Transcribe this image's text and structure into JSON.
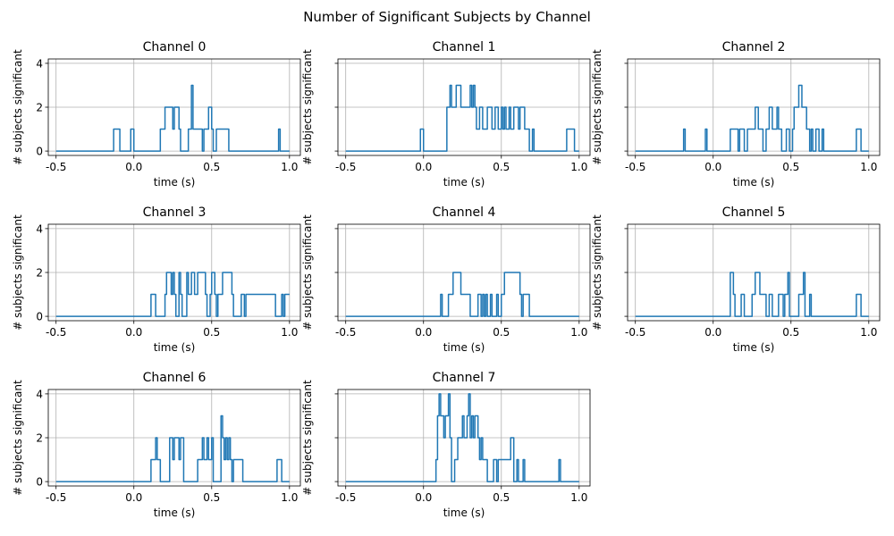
{
  "figure": {
    "suptitle": "Number of Significant Subjects by Channel"
  },
  "colors": {
    "series": "#1f77b4",
    "grid": "#b0b0b0"
  },
  "chart_data": {
    "type": "line",
    "shared_y": true,
    "grid": true,
    "xlim": [
      -0.55,
      1.07
    ],
    "ylim": [
      -0.2,
      4.2
    ],
    "xticks": [
      -0.5,
      0.0,
      0.5,
      1.0
    ],
    "xtick_labels": [
      "-0.5",
      "0.0",
      "0.5",
      "1.0"
    ],
    "yticks": [
      0,
      2,
      4
    ],
    "ytick_labels": [
      "0",
      "2",
      "4"
    ],
    "xlabel": "time (s)",
    "ylabel": "# subjects significant",
    "panels": [
      {
        "title": "Channel 0",
        "x": [
          -0.5,
          -0.13,
          -0.13,
          -0.09,
          -0.09,
          -0.02,
          -0.02,
          0.0,
          0.0,
          0.17,
          0.17,
          0.2,
          0.2,
          0.25,
          0.25,
          0.26,
          0.26,
          0.29,
          0.29,
          0.3,
          0.3,
          0.35,
          0.35,
          0.37,
          0.37,
          0.38,
          0.38,
          0.44,
          0.44,
          0.45,
          0.45,
          0.48,
          0.48,
          0.5,
          0.5,
          0.51,
          0.51,
          0.53,
          0.53,
          0.61,
          0.61,
          0.93,
          0.93,
          0.94,
          0.94,
          1.0
        ],
        "y": [
          0,
          0,
          1,
          1,
          0,
          0,
          1,
          1,
          0,
          0,
          1,
          1,
          2,
          2,
          1,
          1,
          2,
          2,
          1,
          1,
          0,
          0,
          1,
          1,
          3,
          3,
          1,
          1,
          0,
          0,
          1,
          1,
          2,
          2,
          1,
          1,
          0,
          0,
          1,
          1,
          0,
          0,
          1,
          1,
          0,
          0
        ]
      },
      {
        "title": "Channel 1",
        "x": [
          -0.5,
          -0.02,
          -0.02,
          0.0,
          0.0,
          0.15,
          0.15,
          0.17,
          0.17,
          0.18,
          0.18,
          0.21,
          0.21,
          0.24,
          0.24,
          0.3,
          0.3,
          0.31,
          0.31,
          0.32,
          0.32,
          0.33,
          0.33,
          0.34,
          0.34,
          0.36,
          0.36,
          0.38,
          0.38,
          0.41,
          0.41,
          0.44,
          0.44,
          0.46,
          0.46,
          0.48,
          0.48,
          0.5,
          0.5,
          0.51,
          0.51,
          0.52,
          0.52,
          0.53,
          0.53,
          0.55,
          0.55,
          0.56,
          0.56,
          0.58,
          0.58,
          0.61,
          0.61,
          0.62,
          0.62,
          0.65,
          0.65,
          0.68,
          0.68,
          0.7,
          0.7,
          0.71,
          0.71,
          0.92,
          0.92,
          0.97,
          0.97,
          1.0
        ],
        "y": [
          0,
          0,
          1,
          1,
          0,
          0,
          2,
          2,
          3,
          3,
          2,
          2,
          3,
          3,
          2,
          2,
          3,
          3,
          2,
          2,
          3,
          3,
          2,
          2,
          1,
          1,
          2,
          2,
          1,
          1,
          2,
          2,
          1,
          1,
          2,
          2,
          1,
          1,
          2,
          2,
          1,
          1,
          2,
          2,
          1,
          1,
          2,
          2,
          1,
          1,
          2,
          2,
          1,
          1,
          2,
          2,
          1,
          1,
          0,
          0,
          1,
          1,
          0,
          0,
          1,
          1,
          0,
          0
        ]
      },
      {
        "title": "Channel 2",
        "x": [
          -0.5,
          -0.19,
          -0.19,
          -0.18,
          -0.18,
          -0.05,
          -0.05,
          -0.04,
          -0.04,
          0.11,
          0.11,
          0.16,
          0.16,
          0.17,
          0.17,
          0.2,
          0.2,
          0.22,
          0.22,
          0.27,
          0.27,
          0.29,
          0.29,
          0.32,
          0.32,
          0.34,
          0.34,
          0.36,
          0.36,
          0.38,
          0.38,
          0.41,
          0.41,
          0.42,
          0.42,
          0.44,
          0.44,
          0.47,
          0.47,
          0.49,
          0.49,
          0.51,
          0.51,
          0.52,
          0.52,
          0.55,
          0.55,
          0.57,
          0.57,
          0.6,
          0.6,
          0.62,
          0.62,
          0.63,
          0.63,
          0.64,
          0.64,
          0.66,
          0.66,
          0.68,
          0.68,
          0.7,
          0.7,
          0.71,
          0.71,
          0.92,
          0.92,
          0.95,
          0.95,
          1.0
        ],
        "y": [
          0,
          0,
          1,
          1,
          0,
          0,
          1,
          1,
          0,
          0,
          1,
          1,
          0,
          0,
          1,
          1,
          0,
          0,
          1,
          1,
          2,
          2,
          1,
          1,
          0,
          0,
          1,
          1,
          2,
          2,
          1,
          1,
          2,
          2,
          1,
          1,
          0,
          0,
          1,
          1,
          0,
          0,
          1,
          1,
          2,
          2,
          3,
          3,
          2,
          2,
          1,
          1,
          0,
          0,
          1,
          1,
          0,
          0,
          1,
          1,
          0,
          0,
          1,
          1,
          0,
          0,
          1,
          1,
          0,
          0
        ]
      },
      {
        "title": "Channel 3",
        "x": [
          -0.5,
          0.11,
          0.11,
          0.14,
          0.14,
          0.2,
          0.2,
          0.21,
          0.21,
          0.24,
          0.24,
          0.25,
          0.25,
          0.26,
          0.26,
          0.27,
          0.27,
          0.29,
          0.29,
          0.3,
          0.3,
          0.31,
          0.31,
          0.34,
          0.34,
          0.35,
          0.35,
          0.37,
          0.37,
          0.39,
          0.39,
          0.41,
          0.41,
          0.46,
          0.46,
          0.47,
          0.47,
          0.49,
          0.49,
          0.5,
          0.5,
          0.52,
          0.52,
          0.53,
          0.53,
          0.54,
          0.54,
          0.57,
          0.57,
          0.63,
          0.63,
          0.64,
          0.64,
          0.69,
          0.69,
          0.71,
          0.71,
          0.72,
          0.72,
          0.91,
          0.91,
          0.95,
          0.95,
          0.96,
          0.96,
          0.97,
          0.97,
          1.0
        ],
        "y": [
          0,
          0,
          1,
          1,
          0,
          0,
          1,
          1,
          2,
          2,
          1,
          1,
          2,
          2,
          1,
          1,
          0,
          0,
          2,
          2,
          1,
          1,
          0,
          0,
          2,
          2,
          1,
          1,
          2,
          2,
          1,
          1,
          2,
          2,
          1,
          1,
          0,
          0,
          1,
          1,
          2,
          2,
          1,
          1,
          0,
          0,
          1,
          1,
          2,
          2,
          1,
          1,
          0,
          0,
          1,
          1,
          0,
          0,
          1,
          1,
          0,
          0,
          1,
          1,
          0,
          0,
          1,
          1
        ]
      },
      {
        "title": "Channel 4",
        "x": [
          -0.5,
          0.11,
          0.11,
          0.12,
          0.12,
          0.16,
          0.16,
          0.19,
          0.19,
          0.24,
          0.24,
          0.3,
          0.3,
          0.35,
          0.35,
          0.37,
          0.37,
          0.38,
          0.38,
          0.39,
          0.39,
          0.4,
          0.4,
          0.41,
          0.41,
          0.43,
          0.43,
          0.44,
          0.44,
          0.47,
          0.47,
          0.48,
          0.48,
          0.5,
          0.5,
          0.52,
          0.52,
          0.62,
          0.62,
          0.63,
          0.63,
          0.64,
          0.64,
          0.68,
          0.68,
          0.7,
          0.7,
          1.0
        ],
        "y": [
          0,
          0,
          1,
          1,
          0,
          0,
          1,
          1,
          2,
          2,
          1,
          1,
          0,
          0,
          1,
          1,
          0,
          0,
          1,
          1,
          0,
          0,
          1,
          1,
          0,
          0,
          1,
          1,
          0,
          0,
          1,
          1,
          0,
          0,
          1,
          1,
          2,
          2,
          1,
          1,
          0,
          0,
          1,
          1,
          0,
          0,
          0,
          0
        ]
      },
      {
        "title": "Channel 5",
        "x": [
          -0.5,
          0.11,
          0.11,
          0.13,
          0.13,
          0.14,
          0.14,
          0.18,
          0.18,
          0.2,
          0.2,
          0.25,
          0.25,
          0.27,
          0.27,
          0.3,
          0.3,
          0.34,
          0.34,
          0.36,
          0.36,
          0.38,
          0.38,
          0.42,
          0.42,
          0.45,
          0.45,
          0.46,
          0.46,
          0.48,
          0.48,
          0.49,
          0.49,
          0.55,
          0.55,
          0.58,
          0.58,
          0.59,
          0.59,
          0.62,
          0.62,
          0.63,
          0.63,
          0.65,
          0.65,
          0.92,
          0.92,
          0.95,
          0.95,
          1.0
        ],
        "y": [
          0,
          0,
          2,
          2,
          1,
          1,
          0,
          0,
          1,
          1,
          0,
          0,
          1,
          1,
          2,
          2,
          1,
          1,
          0,
          0,
          1,
          1,
          0,
          0,
          1,
          1,
          0,
          0,
          1,
          1,
          2,
          2,
          0,
          0,
          1,
          1,
          2,
          2,
          0,
          0,
          1,
          1,
          0,
          0,
          0,
          0,
          1,
          1,
          0,
          0
        ]
      },
      {
        "title": "Channel 6",
        "x": [
          -0.5,
          0.11,
          0.11,
          0.14,
          0.14,
          0.15,
          0.15,
          0.17,
          0.17,
          0.23,
          0.23,
          0.25,
          0.25,
          0.26,
          0.26,
          0.29,
          0.29,
          0.3,
          0.3,
          0.32,
          0.32,
          0.41,
          0.41,
          0.44,
          0.44,
          0.45,
          0.45,
          0.47,
          0.47,
          0.48,
          0.48,
          0.5,
          0.5,
          0.51,
          0.51,
          0.56,
          0.56,
          0.57,
          0.57,
          0.58,
          0.58,
          0.59,
          0.59,
          0.6,
          0.6,
          0.61,
          0.61,
          0.62,
          0.62,
          0.63,
          0.63,
          0.64,
          0.64,
          0.7,
          0.7,
          0.71,
          0.71,
          0.92,
          0.92,
          0.95,
          0.95,
          1.0
        ],
        "y": [
          0,
          0,
          1,
          1,
          2,
          2,
          1,
          1,
          0,
          0,
          2,
          2,
          1,
          1,
          2,
          2,
          1,
          1,
          2,
          2,
          0,
          0,
          1,
          1,
          2,
          2,
          1,
          1,
          2,
          2,
          1,
          1,
          2,
          2,
          0,
          0,
          3,
          3,
          2,
          2,
          1,
          1,
          2,
          2,
          1,
          1,
          2,
          2,
          1,
          1,
          0,
          0,
          1,
          1,
          0,
          0,
          0,
          0,
          1,
          1,
          0,
          0
        ]
      },
      {
        "title": "Channel 7",
        "x": [
          -0.5,
          0.08,
          0.08,
          0.09,
          0.09,
          0.1,
          0.1,
          0.11,
          0.11,
          0.13,
          0.13,
          0.14,
          0.14,
          0.16,
          0.16,
          0.17,
          0.17,
          0.18,
          0.18,
          0.2,
          0.2,
          0.22,
          0.22,
          0.25,
          0.25,
          0.26,
          0.26,
          0.28,
          0.28,
          0.29,
          0.29,
          0.3,
          0.3,
          0.31,
          0.31,
          0.32,
          0.32,
          0.33,
          0.33,
          0.35,
          0.35,
          0.36,
          0.36,
          0.37,
          0.37,
          0.38,
          0.38,
          0.41,
          0.41,
          0.45,
          0.45,
          0.47,
          0.47,
          0.48,
          0.48,
          0.56,
          0.56,
          0.58,
          0.58,
          0.6,
          0.6,
          0.61,
          0.61,
          0.64,
          0.64,
          0.65,
          0.65,
          0.87,
          0.87,
          0.88,
          0.88,
          1.0
        ],
        "y": [
          0,
          0,
          1,
          1,
          3,
          3,
          4,
          4,
          3,
          3,
          2,
          2,
          3,
          3,
          4,
          4,
          2,
          2,
          0,
          0,
          1,
          1,
          2,
          2,
          3,
          3,
          2,
          2,
          3,
          3,
          4,
          4,
          2,
          2,
          3,
          3,
          2,
          2,
          3,
          3,
          2,
          2,
          1,
          1,
          2,
          2,
          1,
          1,
          0,
          0,
          1,
          1,
          0,
          0,
          1,
          1,
          2,
          2,
          0,
          0,
          1,
          1,
          0,
          0,
          1,
          1,
          0,
          0,
          1,
          1,
          0,
          0
        ]
      }
    ]
  }
}
